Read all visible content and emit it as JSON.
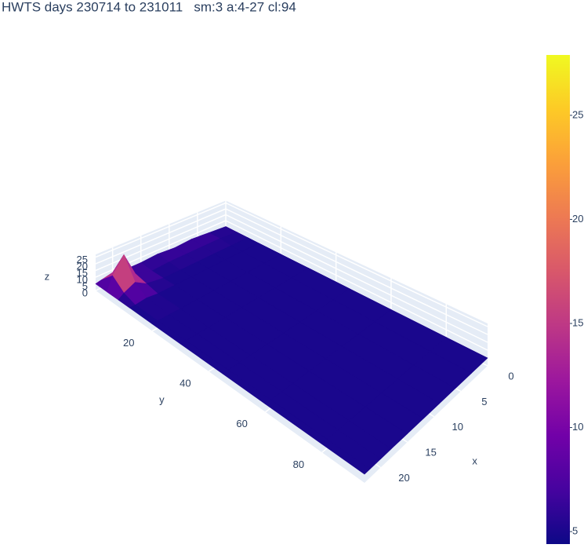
{
  "chart_data": {
    "type": "surface",
    "title": "HWTS days 230714 to 231011   sm:3 a:4-27 cl:94",
    "x_label": "x",
    "y_label": "y",
    "z_label": "z",
    "x": [
      0,
      3,
      6,
      9,
      12,
      15,
      18,
      20,
      22,
      23
    ],
    "y": [
      0,
      4,
      8,
      12,
      20,
      30,
      45,
      60,
      80,
      95
    ],
    "z": [
      [
        5,
        6,
        7,
        6,
        7,
        6,
        6,
        8,
        6,
        5
      ],
      [
        5,
        6,
        6,
        6,
        6,
        5,
        9,
        27,
        15,
        5
      ],
      [
        5,
        5,
        5,
        5,
        5,
        5,
        7,
        12,
        8,
        5
      ],
      [
        5,
        5,
        5,
        5,
        5,
        5,
        5,
        6,
        5,
        5
      ],
      [
        5,
        5,
        5,
        5,
        5,
        5,
        5,
        5,
        5,
        5
      ],
      [
        5,
        5,
        5,
        5,
        5,
        5,
        5,
        5,
        5,
        5
      ],
      [
        5,
        5,
        5,
        5,
        5,
        5,
        5,
        5,
        5,
        5
      ],
      [
        5,
        5,
        5,
        5,
        5,
        5,
        5,
        5,
        5,
        5
      ],
      [
        5,
        5,
        5,
        5,
        5,
        5,
        5,
        5,
        5,
        5
      ],
      [
        5,
        5,
        5,
        5,
        5,
        5,
        5,
        5,
        5,
        5
      ]
    ],
    "xlim": [
      0,
      23
    ],
    "ylim": [
      0,
      95
    ],
    "zlim": [
      0,
      27
    ],
    "xticks": [
      0,
      5,
      10,
      15,
      20
    ],
    "yticks": [
      20,
      40,
      60,
      80
    ],
    "zticks": [
      0,
      5,
      10,
      15,
      20,
      25
    ],
    "colorscale": [
      "#0d0887",
      "#46039f",
      "#7201a8",
      "#9c179e",
      "#bd3786",
      "#d8576b",
      "#ed7953",
      "#fb9f3a",
      "#fdca26",
      "#f0f921"
    ],
    "clim": [
      4.4,
      27.9
    ],
    "colorbar_ticks": [
      5,
      10,
      15,
      20,
      25
    ]
  }
}
